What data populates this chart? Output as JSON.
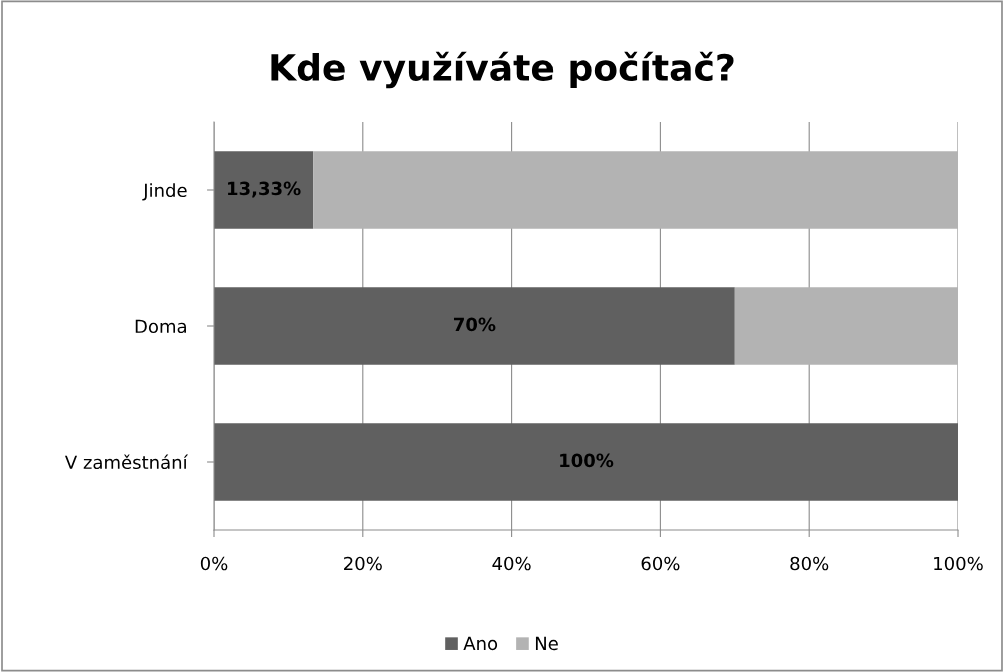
{
  "chart_data": {
    "type": "bar",
    "orientation": "horizontal",
    "stacked": true,
    "title": "Kde využíváte počítač?",
    "categories": [
      "Jinde",
      "Doma",
      "V zaměstnání"
    ],
    "series": [
      {
        "name": "Ano",
        "color": "#606060",
        "values": [
          13.33,
          70,
          100
        ],
        "value_labels": [
          "13,33%",
          "70%",
          "100%"
        ]
      },
      {
        "name": "Ne",
        "color": "#b3b3b3",
        "values": [
          86.67,
          30,
          0
        ]
      }
    ],
    "xlim": [
      0,
      100
    ],
    "xticks": [
      {
        "value": 0,
        "label": "0%"
      },
      {
        "value": 20,
        "label": "20%"
      },
      {
        "value": 40,
        "label": "40%"
      },
      {
        "value": 60,
        "label": "60%"
      },
      {
        "value": 80,
        "label": "80%"
      },
      {
        "value": 100,
        "label": "100%"
      }
    ],
    "grid": "x",
    "legend": "bottom"
  }
}
